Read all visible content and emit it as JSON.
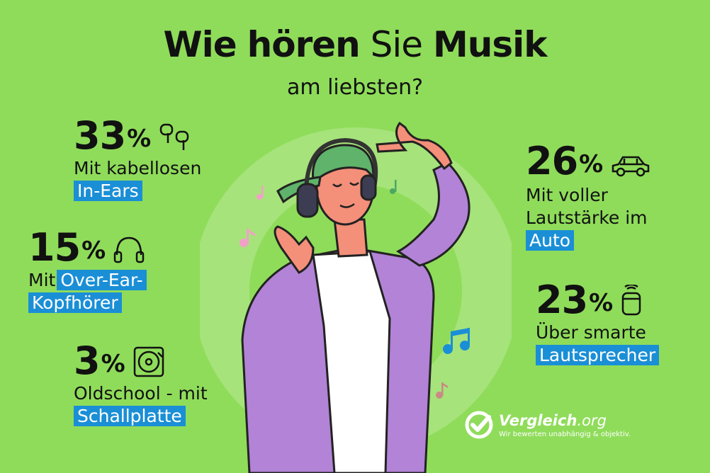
{
  "header": {
    "title_w1": "Wie",
    "title_w2": "hören",
    "title_w3": "Sie",
    "title_w4": "Musik",
    "subtitle": "am liebsten?"
  },
  "chart_data": {
    "type": "table",
    "title": "Wie hören Sie Musik am liebsten?",
    "rows": [
      {
        "value": 33,
        "unit": "%",
        "label_plain": "Mit kabellosen",
        "label_highlight": "In-Ears",
        "icon": "earbuds-icon"
      },
      {
        "value": 15,
        "unit": "%",
        "label_plain": "Mit",
        "label_highlight": "Over-Ear-Kopfhörer",
        "icon": "headphones-icon"
      },
      {
        "value": 3,
        "unit": "%",
        "label_plain": "Oldschool - mit",
        "label_highlight": "Schallplatte",
        "icon": "vinyl-record-icon"
      },
      {
        "value": 26,
        "unit": "%",
        "label_plain": "Mit voller Lautstärke im",
        "label_highlight": "Auto",
        "icon": "car-icon"
      },
      {
        "value": 23,
        "unit": "%",
        "label_plain": "Über smarte",
        "label_highlight": "Lautsprecher",
        "icon": "smart-speaker-icon"
      }
    ]
  },
  "display": {
    "s0_line1": "Mit kabellosen",
    "s0_line2": "In-Ears",
    "s1_line1": "Mit",
    "s1_hl1": "Over-Ear-",
    "s1_hl2": "Kopfhörer",
    "s2_line1": "Oldschool - mit",
    "s2_line2": "Schallplatte",
    "s3_line1": "Mit voller",
    "s3_line2": "Lautstärke im",
    "s3_line3": "Auto",
    "s4_line1": "Über smarte",
    "s4_line2": "Lautsprecher"
  },
  "brand": {
    "name": "Vergleich",
    "tld": ".org",
    "tagline": "Wir bewerten unabhängig & objektiv."
  },
  "colors": {
    "background": "#8fdc5a",
    "highlight": "#1a8fd6",
    "text": "#111111"
  }
}
